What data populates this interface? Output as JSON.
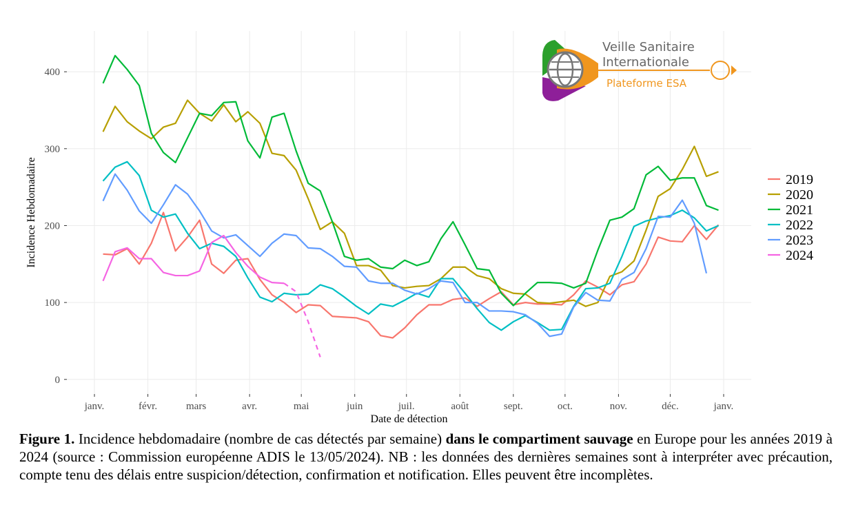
{
  "chart_data": {
    "type": "line",
    "y_label": "Incidence Hebdomadaire",
    "x_label": "Date de détection",
    "x": [
      5,
      12,
      19,
      26,
      33,
      40,
      47,
      54,
      61,
      68,
      75,
      82,
      89,
      96,
      103,
      110,
      117,
      124,
      131,
      138,
      145,
      152,
      159,
      166,
      173,
      180,
      187,
      194,
      201,
      208,
      215,
      222,
      229,
      236,
      243,
      250,
      257,
      264,
      271,
      278,
      285,
      292,
      299,
      306,
      313,
      320,
      327,
      334,
      341,
      348,
      355,
      362
    ],
    "series": [
      {
        "name": "2019",
        "color": "#F8766D",
        "values": [
          163,
          162,
          170,
          150,
          177,
          217,
          167,
          185,
          207,
          150,
          138,
          155,
          157,
          130,
          110,
          100,
          87,
          97,
          96,
          82,
          81,
          80,
          75,
          57,
          54,
          67,
          84,
          97,
          97,
          104,
          106,
          95,
          105,
          114,
          97,
          100,
          98,
          98,
          97,
          110,
          128,
          120,
          110,
          123,
          127,
          150,
          185,
          180,
          179,
          200,
          182,
          201
        ]
      },
      {
        "name": "2020",
        "color": "#B79F00",
        "values": [
          322,
          355,
          335,
          323,
          313,
          328,
          333,
          363,
          346,
          336,
          357,
          335,
          348,
          333,
          294,
          291,
          272,
          235,
          195,
          205,
          190,
          148,
          148,
          142,
          122,
          119,
          121,
          122,
          131,
          146,
          146,
          135,
          131,
          118,
          112,
          111,
          100,
          99,
          101,
          103,
          95,
          100,
          134,
          140,
          154,
          194,
          238,
          248,
          273,
          303,
          264,
          270
        ]
      },
      {
        "name": "2021",
        "color": "#00BA38",
        "values": [
          385,
          421,
          403,
          382,
          320,
          295,
          282,
          314,
          346,
          343,
          360,
          361,
          310,
          288,
          341,
          346,
          297,
          255,
          245,
          205,
          160,
          155,
          157,
          146,
          144,
          155,
          148,
          153,
          183,
          205,
          175,
          144,
          142,
          112,
          96,
          112,
          126,
          126,
          125,
          119,
          125,
          168,
          207,
          211,
          222,
          266,
          277,
          259,
          262,
          262,
          226,
          220
        ]
      },
      {
        "name": "2022",
        "color": "#00BFC4",
        "values": [
          258,
          276,
          283,
          265,
          220,
          211,
          215,
          190,
          170,
          177,
          173,
          160,
          132,
          107,
          101,
          112,
          110,
          111,
          123,
          118,
          107,
          95,
          85,
          98,
          95,
          103,
          112,
          107,
          131,
          131,
          112,
          92,
          74,
          64,
          75,
          83,
          74,
          64,
          65,
          95,
          118,
          119,
          125,
          160,
          199,
          206,
          210,
          213,
          220,
          210,
          193,
          200
        ]
      },
      {
        "name": "2023",
        "color": "#619CFF",
        "values": [
          232,
          267,
          246,
          219,
          203,
          227,
          253,
          241,
          219,
          193,
          184,
          188,
          174,
          160,
          177,
          189,
          187,
          171,
          170,
          160,
          147,
          146,
          128,
          125,
          125,
          116,
          111,
          118,
          128,
          126,
          100,
          100,
          89,
          89,
          88,
          84,
          73,
          56,
          59,
          94,
          113,
          103,
          102,
          130,
          139,
          170,
          212,
          211,
          233,
          203,
          138,
          null
        ]
      },
      {
        "name": "2024",
        "color": "#F564E3",
        "dashed_from_index": 15,
        "values": [
          128,
          166,
          171,
          157,
          157,
          139,
          135,
          135,
          141,
          178,
          187,
          165,
          147,
          133,
          126,
          125,
          114,
          75,
          29,
          null,
          null,
          null,
          null,
          null,
          null,
          null,
          null,
          null,
          null,
          null,
          null,
          null,
          null,
          null,
          null,
          null,
          null,
          null,
          null,
          null,
          null,
          null,
          null,
          null,
          null,
          null,
          null,
          null,
          null,
          null,
          null,
          null
        ]
      }
    ],
    "xlim": [
      -16,
      381
    ],
    "xticks": [
      {
        "value": 0,
        "label": "janv."
      },
      {
        "value": 31,
        "label": "févr."
      },
      {
        "value": 59,
        "label": "mars"
      },
      {
        "value": 90,
        "label": "avr."
      },
      {
        "value": 120,
        "label": "mai"
      },
      {
        "value": 151,
        "label": "juin"
      },
      {
        "value": 181,
        "label": "juil."
      },
      {
        "value": 212,
        "label": "août"
      },
      {
        "value": 243,
        "label": "sept."
      },
      {
        "value": 273,
        "label": "oct."
      },
      {
        "value": 304,
        "label": "nov."
      },
      {
        "value": 334,
        "label": "déc."
      },
      {
        "value": 365,
        "label": "janv."
      }
    ],
    "ylim": [
      -19,
      453
    ],
    "yticks": [
      0,
      100,
      200,
      300,
      400
    ],
    "grid": true,
    "legend": "right"
  },
  "logo": {
    "line1": "Veille Sanitaire",
    "line2": "Internationale",
    "line3": "Plateforme ESA"
  },
  "caption": [
    {
      "text": "Figure 1.",
      "bold": true
    },
    {
      "text": " Incidence hebdomadaire (nombre de cas détectés par semaine) ",
      "bold": false
    },
    {
      "text": "dans le compartiment sauvage",
      "bold": true
    },
    {
      "text": " en Europe pour les années 2019 à 2024 (source : Commission européenne ADIS le 13/05/2024). NB : les données des dernières semaines sont à interpréter avec précaution, compte tenu des délais entre suspicion/détection, confirmation et notification. Elles peuvent être incomplètes.",
      "bold": false
    }
  ]
}
